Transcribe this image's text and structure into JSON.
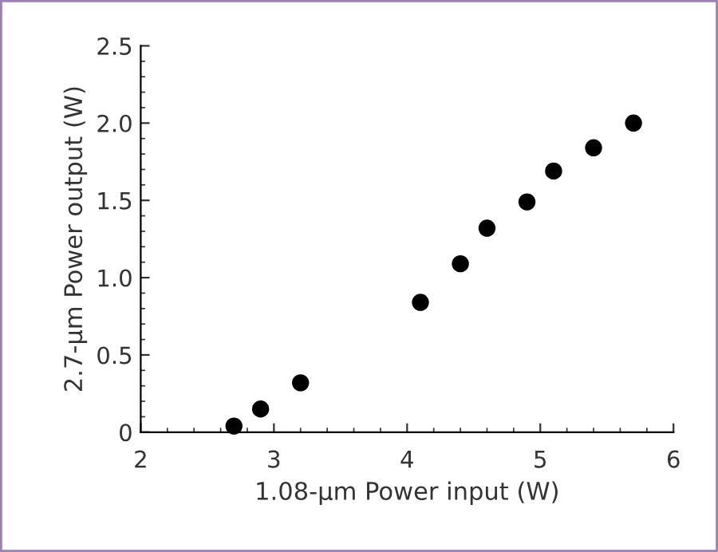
{
  "chart_data": {
    "type": "scatter",
    "xlabel": "1.08-µm Power input (W)",
    "ylabel": "2.7-µm Power output (W)",
    "x": [
      2.7,
      2.9,
      3.2,
      4.1,
      4.4,
      4.6,
      4.9,
      5.1,
      5.4,
      5.7
    ],
    "series": [
      {
        "color": "#000000",
        "values": [
          0.04,
          0.15,
          0.32,
          0.84,
          1.09,
          1.32,
          1.49,
          1.69,
          1.84,
          2.0
        ]
      }
    ],
    "xlim": [
      2,
      6
    ],
    "xticks": [
      2,
      3,
      4,
      5,
      6
    ],
    "ylim": [
      0,
      2.5
    ],
    "yticks": [
      0,
      0.5,
      {
        "value": 1,
        "label": "1.0"
      },
      1.5,
      {
        "value": 2,
        "label": "2.0"
      },
      2.5
    ],
    "grid": false,
    "legend": false,
    "marker": "circle"
  }
}
